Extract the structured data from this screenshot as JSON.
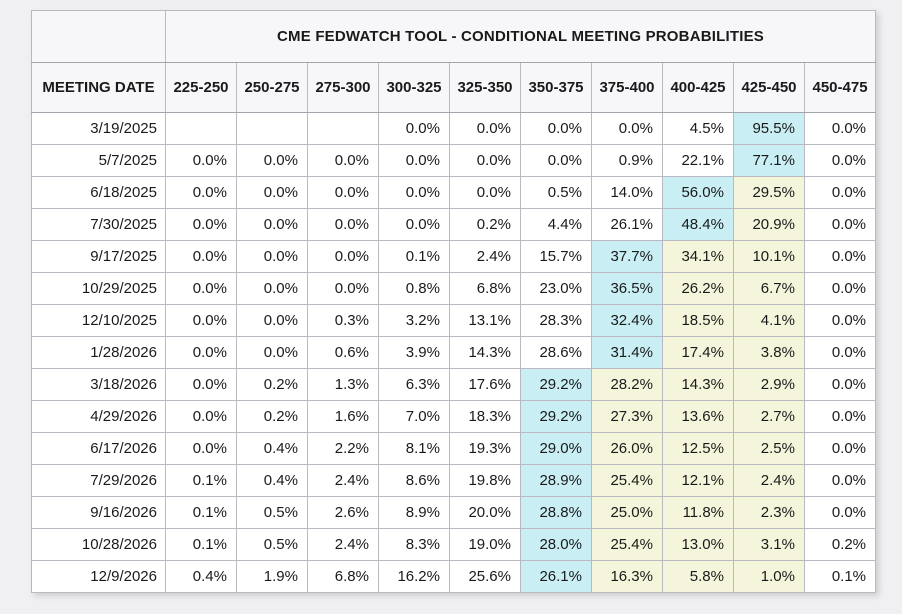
{
  "page": {
    "background": "#f0f0f2"
  },
  "colors": {
    "highlight_cyan": "#c9eff4",
    "highlight_yellow": "#f5f5dc",
    "header_bg": "#f7f7f9",
    "cell_bg": "#ffffff",
    "border": "#b9b9c1",
    "outer_border": "#9b9ba3",
    "text": "#1a1a1a"
  },
  "table": {
    "title": "CME FEDWATCH TOOL - CONDITIONAL MEETING PROBABILITIES",
    "date_header": "MEETING DATE",
    "range_headers": [
      "225-250",
      "250-275",
      "275-300",
      "300-325",
      "325-350",
      "350-375",
      "375-400",
      "400-425",
      "425-450",
      "450-475"
    ],
    "rows": [
      {
        "date": "3/19/2025",
        "values": [
          "",
          "",
          "",
          "0.0%",
          "0.0%",
          "0.0%",
          "0.0%",
          "4.5%",
          "95.5%",
          "0.0%"
        ],
        "cyan": 8,
        "yellow": []
      },
      {
        "date": "5/7/2025",
        "values": [
          "0.0%",
          "0.0%",
          "0.0%",
          "0.0%",
          "0.0%",
          "0.0%",
          "0.9%",
          "22.1%",
          "77.1%",
          "0.0%"
        ],
        "cyan": 8,
        "yellow": []
      },
      {
        "date": "6/18/2025",
        "values": [
          "0.0%",
          "0.0%",
          "0.0%",
          "0.0%",
          "0.0%",
          "0.5%",
          "14.0%",
          "56.0%",
          "29.5%",
          "0.0%"
        ],
        "cyan": 7,
        "yellow": [
          8
        ]
      },
      {
        "date": "7/30/2025",
        "values": [
          "0.0%",
          "0.0%",
          "0.0%",
          "0.0%",
          "0.2%",
          "4.4%",
          "26.1%",
          "48.4%",
          "20.9%",
          "0.0%"
        ],
        "cyan": 7,
        "yellow": [
          8
        ]
      },
      {
        "date": "9/17/2025",
        "values": [
          "0.0%",
          "0.0%",
          "0.0%",
          "0.1%",
          "2.4%",
          "15.7%",
          "37.7%",
          "34.1%",
          "10.1%",
          "0.0%"
        ],
        "cyan": 6,
        "yellow": [
          7,
          8
        ]
      },
      {
        "date": "10/29/2025",
        "values": [
          "0.0%",
          "0.0%",
          "0.0%",
          "0.8%",
          "6.8%",
          "23.0%",
          "36.5%",
          "26.2%",
          "6.7%",
          "0.0%"
        ],
        "cyan": 6,
        "yellow": [
          7,
          8
        ]
      },
      {
        "date": "12/10/2025",
        "values": [
          "0.0%",
          "0.0%",
          "0.3%",
          "3.2%",
          "13.1%",
          "28.3%",
          "32.4%",
          "18.5%",
          "4.1%",
          "0.0%"
        ],
        "cyan": 6,
        "yellow": [
          7,
          8
        ]
      },
      {
        "date": "1/28/2026",
        "values": [
          "0.0%",
          "0.0%",
          "0.6%",
          "3.9%",
          "14.3%",
          "28.6%",
          "31.4%",
          "17.4%",
          "3.8%",
          "0.0%"
        ],
        "cyan": 6,
        "yellow": [
          7,
          8
        ]
      },
      {
        "date": "3/18/2026",
        "values": [
          "0.0%",
          "0.2%",
          "1.3%",
          "6.3%",
          "17.6%",
          "29.2%",
          "28.2%",
          "14.3%",
          "2.9%",
          "0.0%"
        ],
        "cyan": 5,
        "yellow": [
          6,
          7,
          8
        ]
      },
      {
        "date": "4/29/2026",
        "values": [
          "0.0%",
          "0.2%",
          "1.6%",
          "7.0%",
          "18.3%",
          "29.2%",
          "27.3%",
          "13.6%",
          "2.7%",
          "0.0%"
        ],
        "cyan": 5,
        "yellow": [
          6,
          7,
          8
        ]
      },
      {
        "date": "6/17/2026",
        "values": [
          "0.0%",
          "0.4%",
          "2.2%",
          "8.1%",
          "19.3%",
          "29.0%",
          "26.0%",
          "12.5%",
          "2.5%",
          "0.0%"
        ],
        "cyan": 5,
        "yellow": [
          6,
          7,
          8
        ]
      },
      {
        "date": "7/29/2026",
        "values": [
          "0.1%",
          "0.4%",
          "2.4%",
          "8.6%",
          "19.8%",
          "28.9%",
          "25.4%",
          "12.1%",
          "2.4%",
          "0.0%"
        ],
        "cyan": 5,
        "yellow": [
          6,
          7,
          8
        ]
      },
      {
        "date": "9/16/2026",
        "values": [
          "0.1%",
          "0.5%",
          "2.6%",
          "8.9%",
          "20.0%",
          "28.8%",
          "25.0%",
          "11.8%",
          "2.3%",
          "0.0%"
        ],
        "cyan": 5,
        "yellow": [
          6,
          7,
          8
        ]
      },
      {
        "date": "10/28/2026",
        "values": [
          "0.1%",
          "0.5%",
          "2.4%",
          "8.3%",
          "19.0%",
          "28.0%",
          "25.4%",
          "13.0%",
          "3.1%",
          "0.2%"
        ],
        "cyan": 5,
        "yellow": [
          6,
          7,
          8
        ]
      },
      {
        "date": "12/9/2026",
        "values": [
          "0.4%",
          "1.9%",
          "6.8%",
          "16.2%",
          "25.6%",
          "26.1%",
          "16.3%",
          "5.8%",
          "1.0%",
          "0.1%"
        ],
        "cyan": 5,
        "yellow": [
          6,
          7,
          8
        ]
      }
    ]
  }
}
